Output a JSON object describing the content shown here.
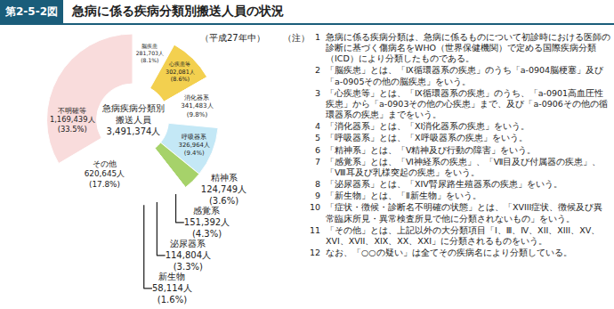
{
  "chart_data": {
    "type": "pie",
    "figure_label": "第2-5-2図",
    "title": "急病に係る疾病分類別搬送人員の状況",
    "period": "（平成27年中）",
    "center_text": [
      "急病疾病分類別",
      "搬送人員",
      "3,491,374人"
    ],
    "categories": [
      "脳疾患",
      "心疾患等",
      "消化器系",
      "呼吸器系",
      "精神系",
      "感覚系",
      "泌尿器系",
      "新生物",
      "その他",
      "不明確等"
    ],
    "values": [
      281703,
      302081,
      341483,
      326964,
      124749,
      151392,
      114804,
      58114,
      620645,
      1169439
    ],
    "value_labels": [
      "281,703人",
      "302,081人",
      "341,483人",
      "326,964人",
      "124,749人",
      "151,392人",
      "114,804人",
      "58,114人",
      "620,645人",
      "1,169,439人"
    ],
    "percent_labels": [
      "(8.1%)",
      "(8.6%)",
      "(9.8%)",
      "(9.4%)",
      "(3.6%)",
      "(4.3%)",
      "(3.3%)",
      "(1.6%)",
      "(17.8%)",
      "(33.5%)"
    ],
    "colors": [
      "#8ccbea",
      "#f3d04f",
      "#f6b3a0",
      "#c4e8f6",
      "#a6d26a",
      "#fbf0a8",
      "#d4ecb8",
      "#f0f0f0",
      "#cfe4f6",
      "#f9dcdc"
    ],
    "data_labels": true,
    "notes_head": "（注）",
    "notes": [
      {
        "number": "1",
        "text": "急病に係る疾病分類は、急病に係るものについて初診時における医師の診断に基づく傷病名をWHO（世界保健機関）で定める国際疾病分類（ICD）により分類したものである。"
      },
      {
        "number": "2",
        "text": "「脳疾患」とは、「Ⅸ循環器系の疾患」のうち「a-0904脳梗塞」及び「a-0905その他の脳疾患」をいう。"
      },
      {
        "number": "3",
        "text": "「心疾患等」とは、「Ⅸ循環器系の疾患」のうち、「a-0901高血圧性疾患」から「a-0903その他の心疾患」まで、及び「a-0906その他の循環器系の疾患」までをいう。"
      },
      {
        "number": "4",
        "text": "「消化器系」とは、「XI消化器系の疾患」をいう。"
      },
      {
        "number": "5",
        "text": "「呼吸器系」とは、「Ⅹ呼吸器系の疾患」をいう。"
      },
      {
        "number": "6",
        "text": "「精神系」とは、「Ⅴ精神及び行動の障害」をいう。"
      },
      {
        "number": "7",
        "text": "「感覚系」とは、「Ⅵ神経系の疾患」、「Ⅶ目及び付属器の疾患」、「Ⅷ耳及び乳様突起の疾患」をいう。"
      },
      {
        "number": "8",
        "text": "「泌尿器系」とは、「XIV腎尿路生殖器系の疾患」をいう。"
      },
      {
        "number": "9",
        "text": "「新生物」とは、「Ⅱ新生物」をいう。"
      },
      {
        "number": "10",
        "text": "「症状・徴候・診断名不明確の状態」とは、「XVIII症状、徴候及び異常臨床所見・異常検査所見で他に分類されないもの」をいう。"
      },
      {
        "number": "11",
        "text": "「その他」とは、上記以外の大分類項目「Ⅰ、Ⅲ、Ⅳ、XII、XIII、XV、XVI、XVII、XIX、XX、XXI」に分類されるものをいう。"
      },
      {
        "number": "12",
        "text": "なお、「○○の疑い」は全てその疾病名により分類している。"
      }
    ]
  }
}
